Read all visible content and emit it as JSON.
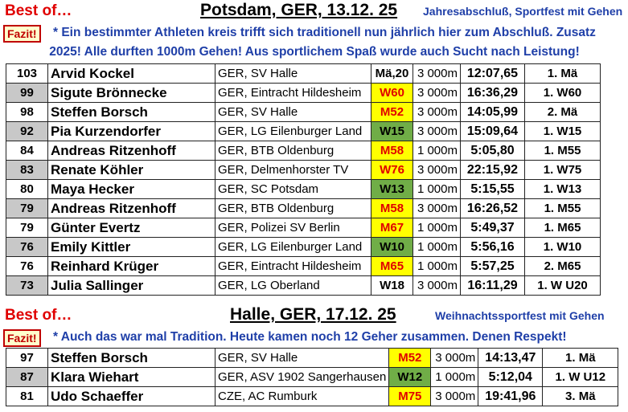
{
  "section1": {
    "best_label": "Best of…",
    "location": "Potsdam, GER, 13.12. 25",
    "event": "Jahresabschluß, Sportfest mit Gehen",
    "fazit_label": "Fazit!",
    "fazit_line1": "* Ein bestimmter Athleten kreis trifft sich traditionell nun jährlich hier zum Abschluß. Zusatz",
    "fazit_line2": "2025! Alle durften 1000m Gehen! Aus sportlichem Spaß wurde auch Sucht nach Leistung!",
    "rows": [
      {
        "pts": "103",
        "name": "Arvid Kockel",
        "club": "GER, SV Halle",
        "ak": "Mä,20",
        "ak_style": "none",
        "dist": "3 000m",
        "time": "12:07,65",
        "place": "1. Mä"
      },
      {
        "pts": "99",
        "name": "Sigute Brönnecke",
        "club": "GER, Eintracht Hildesheim",
        "ak": "W60",
        "ak_style": "yellow",
        "dist": "3 000m",
        "time": "16:36,29",
        "place": "1. W60"
      },
      {
        "pts": "98",
        "name": "Steffen Borsch",
        "club": "GER, SV Halle",
        "ak": "M52",
        "ak_style": "yellow",
        "dist": "3 000m",
        "time": "14:05,99",
        "place": "2. Mä"
      },
      {
        "pts": "92",
        "name": "Pia Kurzendorfer",
        "club": "GER, LG Eilenburger Land",
        "ak": "W15",
        "ak_style": "green",
        "dist": "3 000m",
        "time": "15:09,64",
        "place": "1. W15"
      },
      {
        "pts": "84",
        "name": "Andreas Ritzenhoff",
        "club": "GER, BTB Oldenburg",
        "ak": "M58",
        "ak_style": "yellow",
        "dist": "1 000m",
        "time": "5:05,80",
        "place": "1. M55"
      },
      {
        "pts": "83",
        "name": "Renate Köhler",
        "club": "GER, Delmenhorster TV",
        "ak": "W76",
        "ak_style": "yellow",
        "dist": "3 000m",
        "time": "22:15,92",
        "place": "1. W75"
      },
      {
        "pts": "80",
        "name": "Maya Hecker",
        "club": "GER, SC Potsdam",
        "ak": "W13",
        "ak_style": "green",
        "dist": "1 000m",
        "time": "5:15,55",
        "place": "1. W13"
      },
      {
        "pts": "79",
        "name": "Andreas Ritzenhoff",
        "club": "GER, BTB Oldenburg",
        "ak": "M58",
        "ak_style": "yellow",
        "dist": "3 000m",
        "time": "16:26,52",
        "place": "1. M55"
      },
      {
        "pts": "79",
        "name": "Günter Evertz",
        "club": "GER, Polizei SV Berlin",
        "ak": "M67",
        "ak_style": "yellow",
        "dist": "1 000m",
        "time": "5:49,37",
        "place": "1. M65"
      },
      {
        "pts": "76",
        "name": "Emily Kittler",
        "club": "GER, LG Eilenburger Land",
        "ak": "W10",
        "ak_style": "green",
        "dist": "1 000m",
        "time": "5:56,16",
        "place": "1. W10"
      },
      {
        "pts": "76",
        "name": "Reinhard Krüger",
        "club": "GER, Eintracht Hildesheim",
        "ak": "M65",
        "ak_style": "yellow",
        "dist": "1 000m",
        "time": "5:57,25",
        "place": "2. M65"
      },
      {
        "pts": "73",
        "name": "Julia Sallinger",
        "club": "GER, LG Oberland",
        "ak": "W18",
        "ak_style": "none",
        "dist": "3 000m",
        "time": "16:11,29",
        "place": "1. W U20"
      }
    ]
  },
  "section2": {
    "best_label": "Best of…",
    "location": "Halle, GER, 17.12. 25",
    "event": "Weihnachtssportfest mit Gehen",
    "fazit_label": "Fazit!",
    "fazit_line1": "* Auch das war mal Tradition. Heute kamen noch 12 Geher zusammen. Denen Respekt!",
    "rows": [
      {
        "pts": "97",
        "name": "Steffen Borsch",
        "club": "GER, SV Halle",
        "ak": "M52",
        "ak_style": "yellow",
        "dist": "3 000m",
        "time": "14:13,47",
        "place": "1. Mä"
      },
      {
        "pts": "87",
        "name": "Klara Wiehart",
        "club": "GER, ASV 1902 Sangerhausen",
        "ak": "W12",
        "ak_style": "green",
        "dist": "1 000m",
        "time": "5:12,04",
        "place": "1. W U12"
      },
      {
        "pts": "81",
        "name": "Udo Schaeffer",
        "club": "CZE, AC Rumburk",
        "ak": "M75",
        "ak_style": "yellow",
        "dist": "3 000m",
        "time": "19:41,96",
        "place": "3. Mä"
      }
    ]
  }
}
